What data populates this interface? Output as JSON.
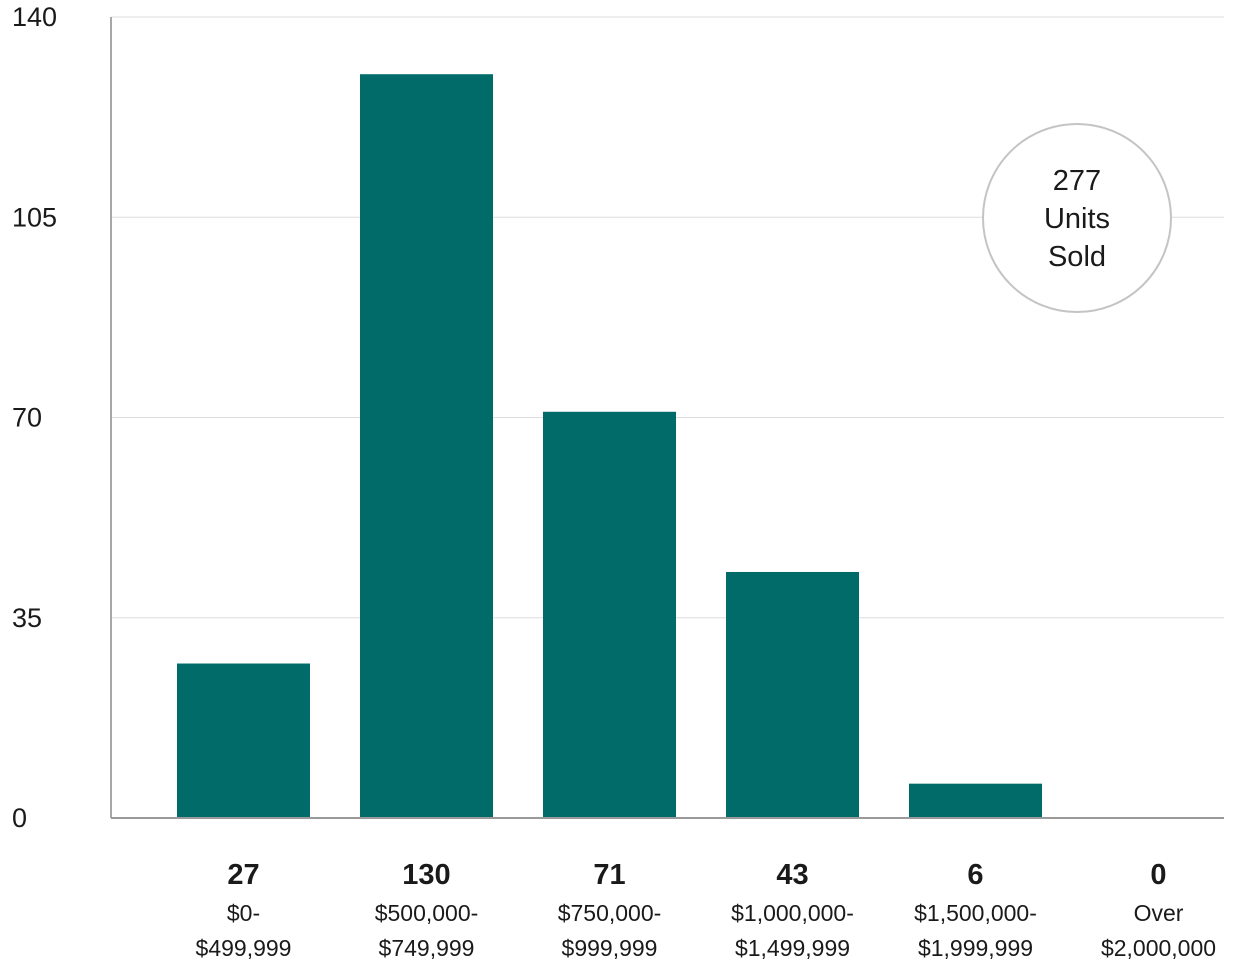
{
  "chart_data": {
    "type": "bar",
    "categories": [
      [
        "$0-",
        "$499,999"
      ],
      [
        "$500,000-",
        "$749,999"
      ],
      [
        "$750,000-",
        "$999,999"
      ],
      [
        "$1,000,000-",
        "$1,499,999"
      ],
      [
        "$1,500,000-",
        "$1,999,999"
      ],
      [
        "Over",
        "$2,000,000"
      ]
    ],
    "values": [
      27,
      130,
      71,
      43,
      6,
      0
    ],
    "value_labels": [
      "27",
      "130",
      "71",
      "43",
      "6",
      "0"
    ],
    "title": "",
    "xlabel": "",
    "ylabel": "",
    "ylim": [
      0,
      140
    ],
    "yticks": [
      0,
      35,
      70,
      105,
      140
    ],
    "ytick_labels": [
      "0",
      "35",
      "70",
      "105",
      "140"
    ],
    "grid": true,
    "bar_color": "#006b69",
    "annotation": {
      "lines": [
        "277",
        "Units",
        "Sold"
      ]
    }
  }
}
